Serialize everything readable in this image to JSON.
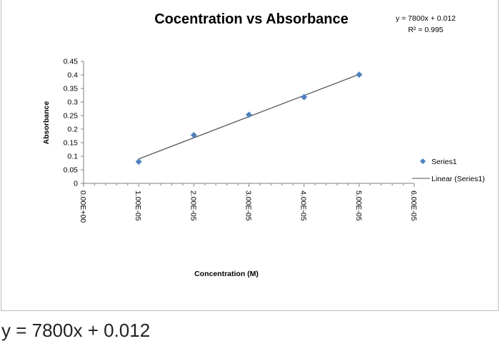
{
  "chart_data": {
    "type": "scatter",
    "title": "Cocentration vs Absorbance",
    "xlabel": "Concentration (M)",
    "ylabel": "Absorbance",
    "xlim": [
      0,
      6e-05
    ],
    "ylim": [
      0,
      0.45
    ],
    "x_ticks": [
      "0.00E+00",
      "1.00E-05",
      "2.00E-05",
      "3.00E-05",
      "4.00E-05",
      "5.00E-05",
      "6.00E-05"
    ],
    "y_ticks": [
      "0",
      "0.05",
      "0.1",
      "0.15",
      "0.2",
      "0.25",
      "0.3",
      "0.35",
      "0.4",
      "0.45"
    ],
    "series": [
      {
        "name": "Series1",
        "color": "#4f81bd",
        "marker": "diamond",
        "x": [
          1e-05,
          2e-05,
          3e-05,
          4e-05,
          5e-05
        ],
        "y": [
          0.08,
          0.178,
          0.253,
          0.318,
          0.401
        ]
      }
    ],
    "trendline": {
      "name": "Linear (Series1)",
      "color": "#4d4d4d",
      "slope": 7800,
      "intercept": 0.012,
      "x_range": [
        1e-05,
        5e-05
      ]
    },
    "equation_label": "y = 7800x + 0.012",
    "r2_label": "R² = 0.995",
    "legend_position": "right",
    "grid": false
  },
  "caption": "y = 7800x + 0.012"
}
